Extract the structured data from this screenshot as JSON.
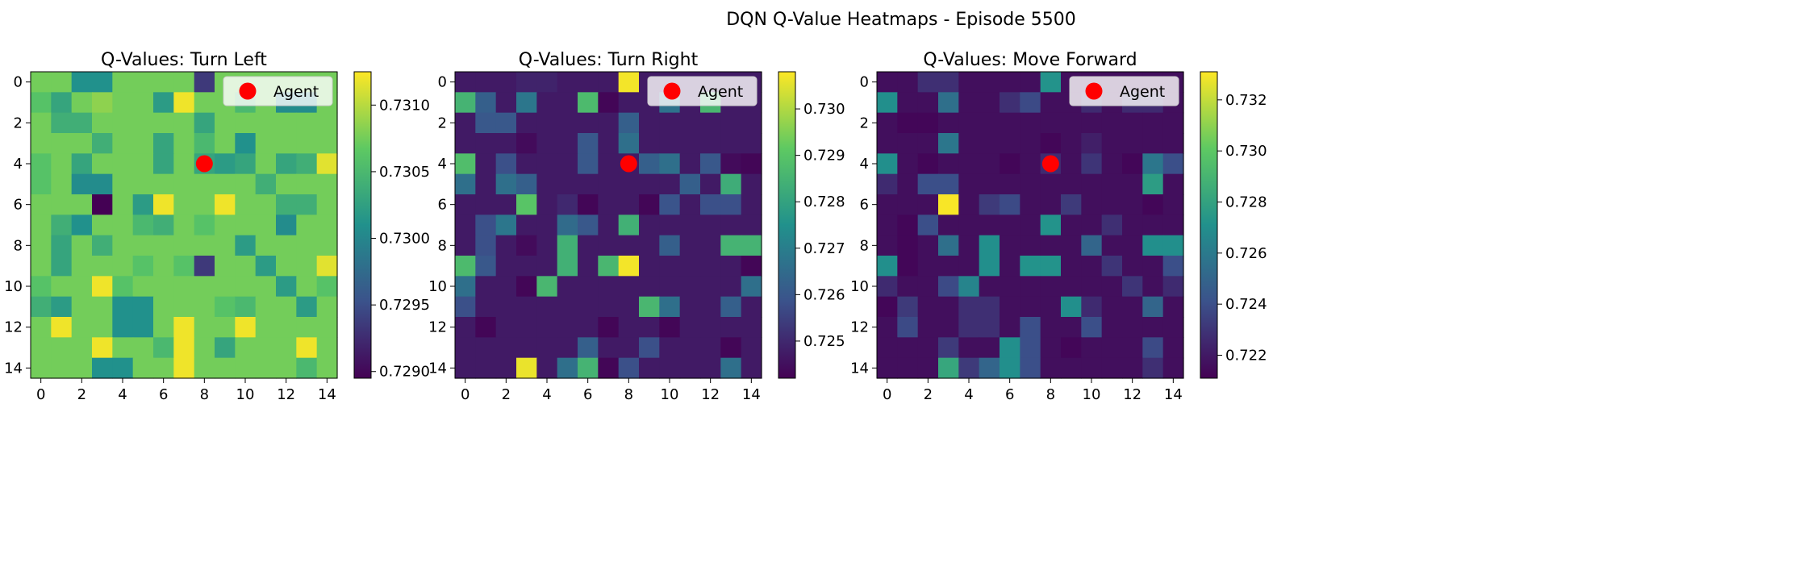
{
  "figure": {
    "suptitle": "DQN Q-Value Heatmaps - Episode 5500"
  },
  "colormap": {
    "name": "viridis",
    "stops": [
      "#440154",
      "#3b528b",
      "#21918c",
      "#5ec962",
      "#fde725"
    ]
  },
  "agent_color": "#ff0000",
  "chart_data": [
    {
      "type": "heatmap",
      "title": "Q-Values: Turn Left",
      "xticks": [
        0,
        2,
        4,
        6,
        8,
        10,
        12,
        14
      ],
      "yticks": [
        0,
        2,
        4,
        6,
        8,
        10,
        12,
        14
      ],
      "legend": {
        "label": "Agent",
        "placement": "top-right"
      },
      "agent": {
        "x": 8,
        "y": 4
      },
      "vmin": 0.72895,
      "vmax": 0.73125,
      "colorbar_ticks": [
        "0.7290",
        "0.7295",
        "0.7300",
        "0.7305",
        "0.7310"
      ],
      "base": 0.73075,
      "overrides": [
        [
          0,
          2,
          0.7301
        ],
        [
          0,
          3,
          0.7301
        ],
        [
          0,
          8,
          0.72935
        ],
        [
          1,
          0,
          0.7306
        ],
        [
          1,
          1,
          0.7303
        ],
        [
          1,
          3,
          0.73085
        ],
        [
          1,
          6,
          0.7302
        ],
        [
          1,
          7,
          0.7312
        ],
        [
          1,
          10,
          0.7305
        ],
        [
          1,
          12,
          0.73005
        ],
        [
          1,
          13,
          0.73005
        ],
        [
          2,
          1,
          0.7304
        ],
        [
          2,
          2,
          0.7304
        ],
        [
          2,
          8,
          0.7303
        ],
        [
          3,
          3,
          0.7304
        ],
        [
          3,
          6,
          0.7303
        ],
        [
          3,
          8,
          0.7305
        ],
        [
          3,
          10,
          0.7301
        ],
        [
          4,
          0,
          0.7306
        ],
        [
          4,
          2,
          0.7303
        ],
        [
          4,
          6,
          0.7303
        ],
        [
          4,
          8,
          0.7303
        ],
        [
          4,
          9,
          0.7302
        ],
        [
          4,
          10,
          0.7303
        ],
        [
          4,
          12,
          0.7303
        ],
        [
          4,
          13,
          0.7304
        ],
        [
          4,
          14,
          0.73115
        ],
        [
          5,
          0,
          0.7306
        ],
        [
          5,
          2,
          0.73005
        ],
        [
          5,
          3,
          0.73005
        ],
        [
          5,
          11,
          0.7304
        ],
        [
          5,
          12,
          0.73075
        ],
        [
          5,
          13,
          0.73075
        ],
        [
          6,
          3,
          0.72895
        ],
        [
          6,
          5,
          0.7302
        ],
        [
          6,
          6,
          0.7312
        ],
        [
          6,
          9,
          0.7312
        ],
        [
          6,
          12,
          0.7304
        ],
        [
          6,
          13,
          0.7304
        ],
        [
          7,
          1,
          0.7304
        ],
        [
          7,
          2,
          0.7301
        ],
        [
          7,
          5,
          0.7305
        ],
        [
          7,
          6,
          0.7304
        ],
        [
          7,
          8,
          0.7306
        ],
        [
          7,
          12,
          0.73005
        ],
        [
          8,
          1,
          0.7303
        ],
        [
          8,
          3,
          0.7304
        ],
        [
          8,
          10,
          0.7302
        ],
        [
          9,
          1,
          0.7303
        ],
        [
          9,
          5,
          0.7306
        ],
        [
          9,
          7,
          0.7306
        ],
        [
          9,
          8,
          0.72935
        ],
        [
          9,
          11,
          0.7302
        ],
        [
          9,
          14,
          0.73115
        ],
        [
          10,
          0,
          0.7306
        ],
        [
          10,
          3,
          0.7312
        ],
        [
          10,
          4,
          0.7306
        ],
        [
          10,
          12,
          0.7302
        ],
        [
          10,
          14,
          0.7306
        ],
        [
          11,
          0,
          0.7304
        ],
        [
          11,
          1,
          0.7302
        ],
        [
          11,
          4,
          0.7301
        ],
        [
          11,
          5,
          0.7301
        ],
        [
          11,
          9,
          0.7306
        ],
        [
          11,
          10,
          0.7305
        ],
        [
          11,
          13,
          0.7302
        ],
        [
          12,
          1,
          0.7312
        ],
        [
          12,
          4,
          0.7301
        ],
        [
          12,
          5,
          0.7301
        ],
        [
          12,
          7,
          0.7312
        ],
        [
          12,
          10,
          0.7312
        ],
        [
          13,
          3,
          0.7312
        ],
        [
          13,
          6,
          0.7305
        ],
        [
          13,
          7,
          0.7312
        ],
        [
          13,
          9,
          0.7303
        ],
        [
          13,
          13,
          0.7312
        ],
        [
          14,
          3,
          0.7301
        ],
        [
          14,
          4,
          0.7301
        ],
        [
          14,
          7,
          0.7312
        ],
        [
          14,
          13,
          0.7305
        ]
      ]
    },
    {
      "type": "heatmap",
      "title": "Q-Values: Turn Right",
      "xticks": [
        0,
        2,
        4,
        6,
        8,
        10,
        12,
        14
      ],
      "yticks": [
        0,
        2,
        4,
        6,
        8,
        10,
        12,
        14
      ],
      "legend": {
        "label": "Agent",
        "placement": "top-right"
      },
      "agent": {
        "x": 8,
        "y": 4
      },
      "vmin": 0.7242,
      "vmax": 0.7308,
      "colorbar_ticks": [
        "0.725",
        "0.726",
        "0.727",
        "0.728",
        "0.729",
        "0.730"
      ],
      "base": 0.7247,
      "overrides": [
        [
          0,
          3,
          0.7249
        ],
        [
          0,
          4,
          0.7249
        ],
        [
          0,
          8,
          0.7307
        ],
        [
          1,
          0,
          0.7285
        ],
        [
          1,
          1,
          0.7262
        ],
        [
          1,
          3,
          0.7268
        ],
        [
          1,
          6,
          0.7287
        ],
        [
          1,
          7,
          0.7243
        ],
        [
          1,
          10,
          0.7267
        ],
        [
          1,
          12,
          0.7286
        ],
        [
          2,
          1,
          0.726
        ],
        [
          2,
          2,
          0.726
        ],
        [
          2,
          8,
          0.7262
        ],
        [
          3,
          3,
          0.7244
        ],
        [
          3,
          6,
          0.726
        ],
        [
          3,
          8,
          0.7266
        ],
        [
          4,
          0,
          0.7288
        ],
        [
          4,
          2,
          0.7258
        ],
        [
          4,
          6,
          0.726
        ],
        [
          4,
          9,
          0.7262
        ],
        [
          4,
          10,
          0.7266
        ],
        [
          4,
          12,
          0.726
        ],
        [
          4,
          13,
          0.7244
        ],
        [
          4,
          14,
          0.7243
        ],
        [
          5,
          0,
          0.7266
        ],
        [
          5,
          2,
          0.7266
        ],
        [
          5,
          3,
          0.7262
        ],
        [
          5,
          11,
          0.7262
        ],
        [
          5,
          13,
          0.7283
        ],
        [
          6,
          3,
          0.729
        ],
        [
          6,
          5,
          0.725
        ],
        [
          6,
          6,
          0.7243
        ],
        [
          6,
          9,
          0.7243
        ],
        [
          6,
          10,
          0.7259
        ],
        [
          6,
          12,
          0.7258
        ],
        [
          6,
          13,
          0.7258
        ],
        [
          7,
          1,
          0.7258
        ],
        [
          7,
          2,
          0.7268
        ],
        [
          7,
          5,
          0.7265
        ],
        [
          7,
          6,
          0.726
        ],
        [
          7,
          8,
          0.7284
        ],
        [
          8,
          1,
          0.7258
        ],
        [
          8,
          3,
          0.7244
        ],
        [
          8,
          5,
          0.7284
        ],
        [
          8,
          10,
          0.7262
        ],
        [
          8,
          13,
          0.7285
        ],
        [
          8,
          14,
          0.7285
        ],
        [
          9,
          0,
          0.7287
        ],
        [
          9,
          1,
          0.726
        ],
        [
          9,
          5,
          0.7284
        ],
        [
          9,
          7,
          0.7286
        ],
        [
          9,
          8,
          0.7307
        ],
        [
          9,
          14,
          0.7243
        ],
        [
          10,
          0,
          0.7266
        ],
        [
          10,
          3,
          0.7243
        ],
        [
          10,
          4,
          0.7286
        ],
        [
          10,
          14,
          0.7266
        ],
        [
          11,
          0,
          0.7258
        ],
        [
          11,
          9,
          0.7286
        ],
        [
          11,
          10,
          0.7266
        ],
        [
          11,
          13,
          0.7262
        ],
        [
          12,
          1,
          0.7243
        ],
        [
          12,
          7,
          0.7243
        ],
        [
          12,
          10,
          0.7243
        ],
        [
          13,
          6,
          0.7262
        ],
        [
          13,
          9,
          0.7258
        ],
        [
          13,
          13,
          0.7243
        ],
        [
          14,
          3,
          0.7306
        ],
        [
          14,
          5,
          0.7266
        ],
        [
          14,
          6,
          0.7285
        ],
        [
          14,
          7,
          0.7243
        ],
        [
          14,
          8,
          0.7258
        ],
        [
          14,
          13,
          0.7266
        ]
      ]
    },
    {
      "type": "heatmap",
      "title": "Q-Values: Move Forward",
      "xticks": [
        0,
        2,
        4,
        6,
        8,
        10,
        12,
        14
      ],
      "yticks": [
        0,
        2,
        4,
        6,
        8,
        10,
        12,
        14
      ],
      "legend": {
        "label": "Agent",
        "placement": "top-right"
      },
      "agent": {
        "x": 8,
        "y": 4
      },
      "vmin": 0.7211,
      "vmax": 0.7331,
      "colorbar_ticks": [
        "0.722",
        "0.724",
        "0.726",
        "0.728",
        "0.730",
        "0.732"
      ],
      "base": 0.7216,
      "overrides": [
        [
          0,
          2,
          0.7228
        ],
        [
          0,
          3,
          0.7228
        ],
        [
          0,
          8,
          0.7272
        ],
        [
          1,
          0,
          0.727
        ],
        [
          1,
          3,
          0.7255
        ],
        [
          1,
          6,
          0.7228
        ],
        [
          1,
          7,
          0.7238
        ],
        [
          1,
          10,
          0.7226
        ],
        [
          1,
          12,
          0.7226
        ],
        [
          1,
          13,
          0.7226
        ],
        [
          2,
          1,
          0.7213
        ],
        [
          2,
          2,
          0.7213
        ],
        [
          3,
          3,
          0.7258
        ],
        [
          3,
          8,
          0.7213
        ],
        [
          3,
          10,
          0.7222
        ],
        [
          4,
          0,
          0.727
        ],
        [
          4,
          2,
          0.7213
        ],
        [
          4,
          6,
          0.7213
        ],
        [
          4,
          8,
          0.7226
        ],
        [
          4,
          10,
          0.723
        ],
        [
          4,
          12,
          0.7213
        ],
        [
          4,
          13,
          0.7258
        ],
        [
          4,
          14,
          0.724
        ],
        [
          5,
          0,
          0.7226
        ],
        [
          5,
          2,
          0.724
        ],
        [
          5,
          3,
          0.724
        ],
        [
          5,
          13,
          0.7277
        ],
        [
          6,
          3,
          0.733
        ],
        [
          6,
          5,
          0.7232
        ],
        [
          6,
          6,
          0.7238
        ],
        [
          6,
          9,
          0.7232
        ],
        [
          6,
          13,
          0.7213
        ],
        [
          7,
          1,
          0.7213
        ],
        [
          7,
          2,
          0.724
        ],
        [
          7,
          8,
          0.7272
        ],
        [
          7,
          11,
          0.7228
        ],
        [
          8,
          1,
          0.7213
        ],
        [
          8,
          3,
          0.7255
        ],
        [
          8,
          5,
          0.727
        ],
        [
          8,
          10,
          0.725
        ],
        [
          8,
          13,
          0.727
        ],
        [
          8,
          14,
          0.727
        ],
        [
          9,
          0,
          0.727
        ],
        [
          9,
          1,
          0.7213
        ],
        [
          9,
          5,
          0.727
        ],
        [
          9,
          7,
          0.7272
        ],
        [
          9,
          8,
          0.7272
        ],
        [
          9,
          11,
          0.723
        ],
        [
          9,
          14,
          0.724
        ],
        [
          10,
          0,
          0.7226
        ],
        [
          10,
          3,
          0.7238
        ],
        [
          10,
          4,
          0.7265
        ],
        [
          10,
          12,
          0.723
        ],
        [
          10,
          14,
          0.7226
        ],
        [
          11,
          0,
          0.7213
        ],
        [
          11,
          1,
          0.7232
        ],
        [
          11,
          4,
          0.7228
        ],
        [
          11,
          5,
          0.7228
        ],
        [
          11,
          9,
          0.727
        ],
        [
          11,
          10,
          0.7226
        ],
        [
          11,
          13,
          0.725
        ],
        [
          12,
          1,
          0.7238
        ],
        [
          12,
          4,
          0.7228
        ],
        [
          12,
          5,
          0.7228
        ],
        [
          12,
          7,
          0.724
        ],
        [
          12,
          10,
          0.724
        ],
        [
          13,
          3,
          0.7232
        ],
        [
          13,
          6,
          0.727
        ],
        [
          13,
          7,
          0.724
        ],
        [
          13,
          9,
          0.7213
        ],
        [
          13,
          13,
          0.7238
        ],
        [
          14,
          3,
          0.7282
        ],
        [
          14,
          4,
          0.7232
        ],
        [
          14,
          5,
          0.725
        ],
        [
          14,
          6,
          0.727
        ],
        [
          14,
          7,
          0.724
        ],
        [
          14,
          13,
          0.7228
        ]
      ]
    }
  ]
}
